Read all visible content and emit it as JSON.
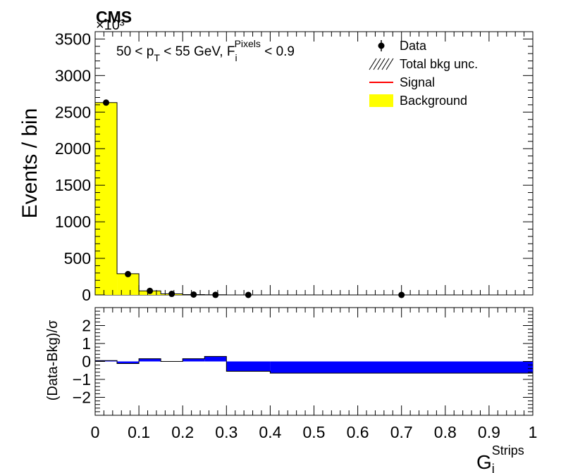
{
  "header": {
    "experiment": "CMS",
    "multiplier": "×10³"
  },
  "selection": {
    "prefix": "50 < p",
    "pt_sub": "T",
    "middle": " < 55 GeV, F",
    "f_sub": "i",
    "f_sup": "Pixels",
    "suffix": " < 0.9"
  },
  "legend": {
    "position": "top-right",
    "items": [
      {
        "label": "Data"
      },
      {
        "label": "Total bkg unc."
      },
      {
        "label": "Signal"
      },
      {
        "label": "Background"
      }
    ]
  },
  "colors": {
    "background_fill": "#ffff00",
    "signal_line": "#ff0000",
    "pull_fill": "#0000ff",
    "data_marker": "#000000"
  },
  "chart_data": [
    {
      "type": "bar",
      "panel": "main",
      "ylabel": "Events / bin",
      "ylim": [
        0,
        3600
      ],
      "yticks": [
        "0",
        "500",
        "1000",
        "1500",
        "2000",
        "2500",
        "3000",
        "3500"
      ],
      "xlim": [
        0,
        1
      ],
      "bin_edges": [
        0,
        0.05,
        0.1,
        0.15,
        0.2,
        0.25,
        0.3,
        0.4,
        1.0
      ],
      "series": [
        {
          "name": "Background",
          "values": [
            2630,
            290,
            55,
            14,
            5,
            2,
            0.5,
            0.2
          ]
        },
        {
          "name": "Data",
          "x": [
            0.025,
            0.075,
            0.125,
            0.175,
            0.225,
            0.275,
            0.35,
            0.7
          ],
          "values": [
            2630,
            285,
            55,
            14,
            5,
            1,
            0,
            0
          ]
        }
      ]
    },
    {
      "type": "bar",
      "panel": "ratio",
      "ylabel": "(Data-Bkg)/σ",
      "xlabel": "G",
      "xlabel_sub": "i",
      "xlabel_sup": "Strips",
      "ylim": [
        -3,
        3
      ],
      "yticks": [
        "−2",
        "−1",
        "0",
        "1",
        "2"
      ],
      "xticks": [
        "0",
        "0.1",
        "0.2",
        "0.3",
        "0.4",
        "0.5",
        "0.6",
        "0.7",
        "0.8",
        "0.9",
        "1"
      ],
      "xlim": [
        0,
        1
      ],
      "bin_edges": [
        0,
        0.05,
        0.1,
        0.15,
        0.2,
        0.25,
        0.3,
        0.4,
        1.0
      ],
      "values": [
        0.05,
        -0.12,
        0.15,
        0.0,
        0.15,
        0.28,
        -0.55,
        -0.65
      ]
    }
  ]
}
